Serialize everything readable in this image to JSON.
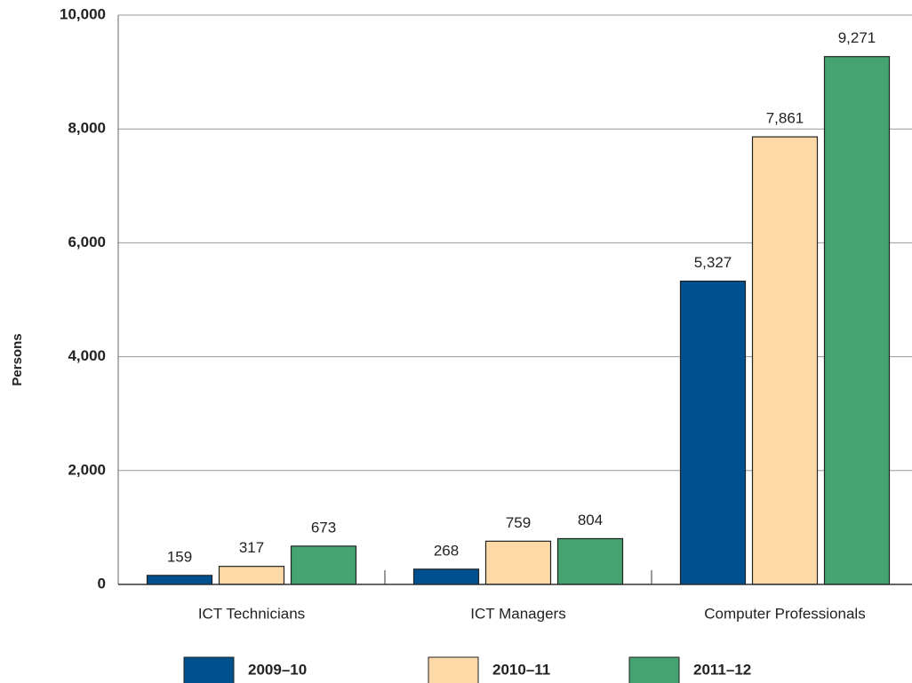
{
  "chart_data": {
    "type": "bar",
    "y_label": "Persons",
    "categories": [
      "ICT Technicians",
      "ICT Managers",
      "Computer Professionals"
    ],
    "series": [
      {
        "name": "2009–10",
        "color": "#00508f",
        "values": [
          159,
          268,
          5327
        ],
        "value_labels": [
          "159",
          "268",
          "5,327"
        ]
      },
      {
        "name": "2010–11",
        "color": "#fdd9a8",
        "values": [
          317,
          759,
          7861
        ],
        "value_labels": [
          "317",
          "759",
          "7,861"
        ]
      },
      {
        "name": "2011–12",
        "color": "#45a370",
        "values": [
          673,
          804,
          9271
        ],
        "value_labels": [
          "673",
          "804",
          "9,271"
        ]
      }
    ],
    "ylim": [
      0,
      10000
    ],
    "yticks": [
      0,
      {
        "value": 2000,
        "label": "2,000"
      },
      {
        "value": 4000,
        "label": "4,000"
      },
      {
        "value": 6000,
        "label": "6,000"
      },
      {
        "value": 8000,
        "label": "8,000"
      },
      {
        "value": 10000,
        "label": "10,000"
      }
    ],
    "grid": true,
    "legend": "bottom"
  }
}
